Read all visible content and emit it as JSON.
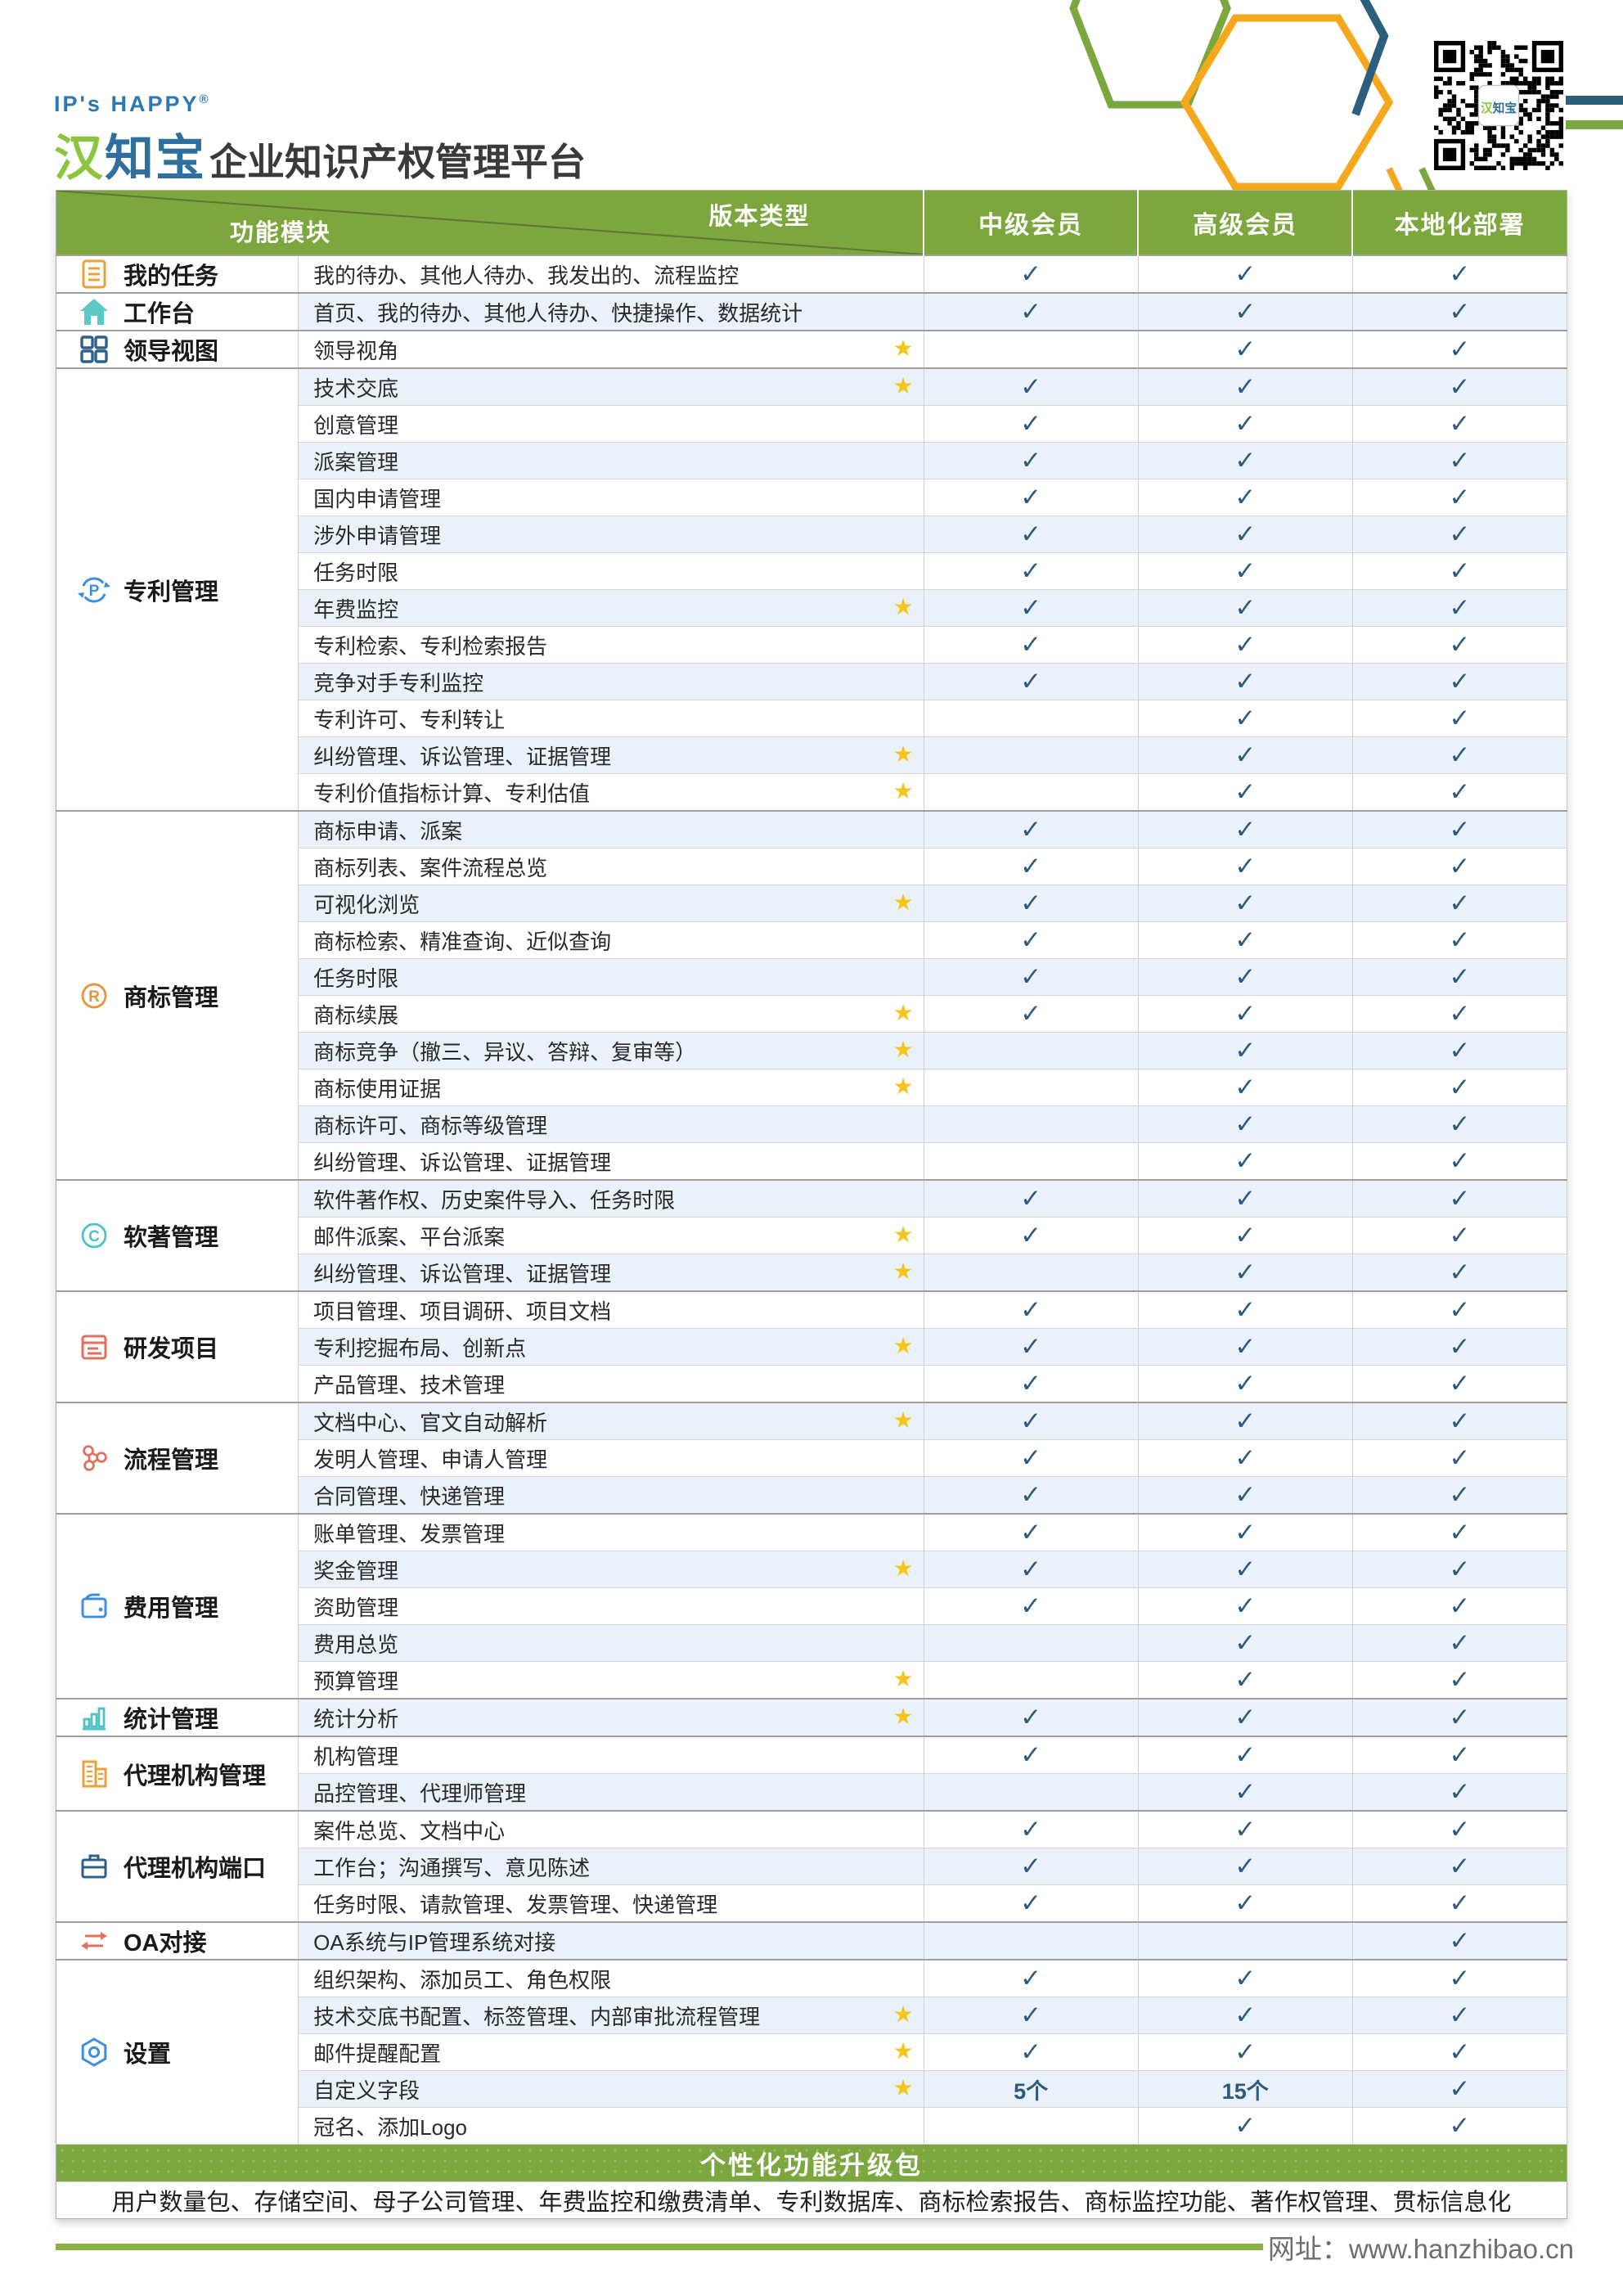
{
  "brand": {
    "tagline": "IP's HAPPY",
    "registered_mark": "®",
    "logo_chars": [
      {
        "ch": "汉",
        "color": "#8bc63e"
      },
      {
        "ch": "知",
        "color": "#2f6f9e"
      },
      {
        "ch": "宝",
        "color": "#2f6f9e"
      }
    ],
    "title_rest": "企业知识产权管理平台"
  },
  "colors": {
    "header_green": "#7ca63e",
    "alt_row_blue": "#e9f2fb",
    "check_blue": "#2e5a7c",
    "star_gold": "#f6c51d",
    "decor_orange": "#f5a81c",
    "decor_blue": "#2e5e7e"
  },
  "table": {
    "module_col_label": "功能模块",
    "version_col_label": "版本类型",
    "plans": [
      "中级会员",
      "高级会员",
      "本地化部署"
    ],
    "groups": [
      {
        "module": "我的任务",
        "icon": "task-list-icon",
        "color": "#e8a23d",
        "rows": [
          {
            "desc": "我的待办、其他人待办、我发出的、流程监控",
            "star": false,
            "cells": [
              "1",
              "1",
              "1"
            ]
          }
        ]
      },
      {
        "module": "工作台",
        "icon": "home-icon",
        "color": "#5ec8c8",
        "rows": [
          {
            "desc": "首页、我的待办、其他人待办、快捷操作、数据统计",
            "star": false,
            "cells": [
              "1",
              "1",
              "1"
            ]
          }
        ]
      },
      {
        "module": "领导视图",
        "icon": "grid-icon",
        "color": "#2d608c",
        "rows": [
          {
            "desc": "领导视角",
            "star": true,
            "cells": [
              "",
              "1",
              "1"
            ]
          }
        ]
      },
      {
        "module": "专利管理",
        "icon": "patent-icon",
        "color": "#3f8ede",
        "rows": [
          {
            "desc": "技术交底",
            "star": true,
            "cells": [
              "1",
              "1",
              "1"
            ]
          },
          {
            "desc": "创意管理",
            "star": false,
            "cells": [
              "1",
              "1",
              "1"
            ]
          },
          {
            "desc": "派案管理",
            "star": false,
            "cells": [
              "1",
              "1",
              "1"
            ]
          },
          {
            "desc": "国内申请管理",
            "star": false,
            "cells": [
              "1",
              "1",
              "1"
            ]
          },
          {
            "desc": "涉外申请管理",
            "star": false,
            "cells": [
              "1",
              "1",
              "1"
            ]
          },
          {
            "desc": "任务时限",
            "star": false,
            "cells": [
              "1",
              "1",
              "1"
            ]
          },
          {
            "desc": "年费监控",
            "star": true,
            "cells": [
              "1",
              "1",
              "1"
            ]
          },
          {
            "desc": "专利检索、专利检索报告",
            "star": false,
            "cells": [
              "1",
              "1",
              "1"
            ]
          },
          {
            "desc": "竞争对手专利监控",
            "star": false,
            "cells": [
              "1",
              "1",
              "1"
            ]
          },
          {
            "desc": "专利许可、专利转让",
            "star": false,
            "cells": [
              "",
              "1",
              "1"
            ]
          },
          {
            "desc": "纠纷管理、诉讼管理、证据管理",
            "star": true,
            "cells": [
              "",
              "1",
              "1"
            ]
          },
          {
            "desc": "专利价值指标计算、专利估值",
            "star": true,
            "cells": [
              "",
              "1",
              "1"
            ]
          }
        ]
      },
      {
        "module": "商标管理",
        "icon": "trademark-icon",
        "color": "#e8923d",
        "rows": [
          {
            "desc": "商标申请、派案",
            "star": false,
            "cells": [
              "1",
              "1",
              "1"
            ]
          },
          {
            "desc": "商标列表、案件流程总览",
            "star": false,
            "cells": [
              "1",
              "1",
              "1"
            ]
          },
          {
            "desc": "可视化浏览",
            "star": true,
            "cells": [
              "1",
              "1",
              "1"
            ]
          },
          {
            "desc": "商标检索、精准查询、近似查询",
            "star": false,
            "cells": [
              "1",
              "1",
              "1"
            ]
          },
          {
            "desc": "任务时限",
            "star": false,
            "cells": [
              "1",
              "1",
              "1"
            ]
          },
          {
            "desc": "商标续展",
            "star": true,
            "cells": [
              "1",
              "1",
              "1"
            ]
          },
          {
            "desc": "商标竞争（撤三、异议、答辩、复审等）",
            "star": true,
            "cells": [
              "",
              "1",
              "1"
            ]
          },
          {
            "desc": "商标使用证据",
            "star": true,
            "cells": [
              "",
              "1",
              "1"
            ]
          },
          {
            "desc": "商标许可、商标等级管理",
            "star": false,
            "cells": [
              "",
              "1",
              "1"
            ]
          },
          {
            "desc": "纠纷管理、诉讼管理、证据管理",
            "star": false,
            "cells": [
              "",
              "1",
              "1"
            ]
          }
        ]
      },
      {
        "module": "软著管理",
        "icon": "copyright-icon",
        "color": "#4ec3c7",
        "rows": [
          {
            "desc": "软件著作权、历史案件导入、任务时限",
            "star": false,
            "cells": [
              "1",
              "1",
              "1"
            ]
          },
          {
            "desc": "邮件派案、平台派案",
            "star": true,
            "cells": [
              "1",
              "1",
              "1"
            ]
          },
          {
            "desc": "纠纷管理、诉讼管理、证据管理",
            "star": true,
            "cells": [
              "",
              "1",
              "1"
            ]
          }
        ]
      },
      {
        "module": "研发项目",
        "icon": "project-icon",
        "color": "#e0705c",
        "rows": [
          {
            "desc": "项目管理、项目调研、项目文档",
            "star": false,
            "cells": [
              "1",
              "1",
              "1"
            ]
          },
          {
            "desc": "专利挖掘布局、创新点",
            "star": true,
            "cells": [
              "1",
              "1",
              "1"
            ]
          },
          {
            "desc": "产品管理、技术管理",
            "star": false,
            "cells": [
              "1",
              "1",
              "1"
            ]
          }
        ]
      },
      {
        "module": "流程管理",
        "icon": "process-icon",
        "color": "#e0705c",
        "rows": [
          {
            "desc": "文档中心、官文自动解析",
            "star": true,
            "cells": [
              "1",
              "1",
              "1"
            ]
          },
          {
            "desc": "发明人管理、申请人管理",
            "star": false,
            "cells": [
              "1",
              "1",
              "1"
            ]
          },
          {
            "desc": "合同管理、快递管理",
            "star": false,
            "cells": [
              "1",
              "1",
              "1"
            ]
          }
        ]
      },
      {
        "module": "费用管理",
        "icon": "wallet-icon",
        "color": "#3f8ede",
        "rows": [
          {
            "desc": "账单管理、发票管理",
            "star": false,
            "cells": [
              "1",
              "1",
              "1"
            ]
          },
          {
            "desc": "奖金管理",
            "star": true,
            "cells": [
              "1",
              "1",
              "1"
            ]
          },
          {
            "desc": "资助管理",
            "star": false,
            "cells": [
              "1",
              "1",
              "1"
            ]
          },
          {
            "desc": "费用总览",
            "star": false,
            "cells": [
              "",
              "1",
              "1"
            ]
          },
          {
            "desc": "预算管理",
            "star": true,
            "cells": [
              "",
              "1",
              "1"
            ]
          }
        ]
      },
      {
        "module": "统计管理",
        "icon": "stats-icon",
        "color": "#4ec3c7",
        "rows": [
          {
            "desc": "统计分析",
            "star": true,
            "cells": [
              "1",
              "1",
              "1"
            ]
          }
        ]
      },
      {
        "module": "代理机构管理",
        "icon": "buildings-icon",
        "color": "#e8a23d",
        "rows": [
          {
            "desc": "机构管理",
            "star": false,
            "cells": [
              "1",
              "1",
              "1"
            ]
          },
          {
            "desc": "品控管理、代理师管理",
            "star": false,
            "cells": [
              "",
              "1",
              "1"
            ]
          }
        ]
      },
      {
        "module": "代理机构端口",
        "icon": "briefcase-icon",
        "color": "#2d608c",
        "rows": [
          {
            "desc": "案件总览、文档中心",
            "star": false,
            "cells": [
              "1",
              "1",
              "1"
            ]
          },
          {
            "desc": "工作台；沟通撰写、意见陈述",
            "star": false,
            "cells": [
              "1",
              "1",
              "1"
            ]
          },
          {
            "desc": "任务时限、请款管理、发票管理、快递管理",
            "star": false,
            "cells": [
              "1",
              "1",
              "1"
            ]
          }
        ]
      },
      {
        "module": "OA对接",
        "icon": "sync-arrows-icon",
        "color": "#e0705c",
        "rows": [
          {
            "desc": "OA系统与IP管理系统对接",
            "star": false,
            "cells": [
              "",
              "",
              "1"
            ]
          }
        ]
      },
      {
        "module": "设置",
        "icon": "gear-icon",
        "color": "#3f8ede",
        "rows": [
          {
            "desc": "组织架构、添加员工、角色权限",
            "star": false,
            "cells": [
              "1",
              "1",
              "1"
            ]
          },
          {
            "desc": "技术交底书配置、标签管理、内部审批流程管理",
            "star": true,
            "cells": [
              "1",
              "1",
              "1"
            ]
          },
          {
            "desc": "邮件提醒配置",
            "star": true,
            "cells": [
              "1",
              "1",
              "1"
            ]
          },
          {
            "desc": "自定义字段",
            "star": true,
            "cells": [
              "5个",
              "15个",
              "1"
            ]
          },
          {
            "desc": "冠名、添加Logo",
            "star": false,
            "cells": [
              "",
              "1",
              "1"
            ]
          }
        ]
      }
    ]
  },
  "footer": {
    "band_title": "个性化功能升级包",
    "items": "用户数量包、存储空间、母子公司管理、年费监控和缴费清单、专利数据库、商标检索报告、商标监控功能、著作权管理、贯标信息化",
    "site": "网址：www.hanzhibao.cn"
  },
  "qr_center_label": "汉知宝"
}
